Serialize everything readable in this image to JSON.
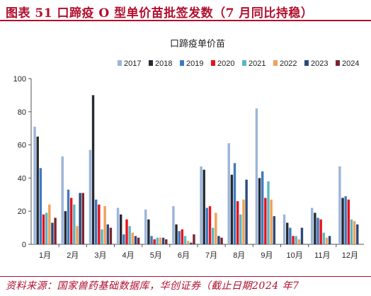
{
  "figure": {
    "header": "图表 51 口蹄疫 O 型单价苗批签发数（7 月同比持稳）",
    "source": "资料来源：国家兽药基础数据库，华创证券（截止日期2024 年7"
  },
  "colors": {
    "header_red": "#b10f2e",
    "series": [
      "#9bb5d9",
      "#262a33",
      "#3f7ac0",
      "#e8121b",
      "#5ab7c4",
      "#f0a05a",
      "#2b4a7a",
      "#7a2530"
    ]
  },
  "chart_data": {
    "type": "bar",
    "title": "口蹄疫单价苗",
    "categories": [
      "1月",
      "2月",
      "3月",
      "4月",
      "5月",
      "6月",
      "7月",
      "8月",
      "9月",
      "10月",
      "11月",
      "12月"
    ],
    "series": [
      {
        "name": "2017",
        "values": [
          71,
          53,
          57,
          22,
          21,
          23,
          47,
          61,
          82,
          18,
          22,
          47
        ]
      },
      {
        "name": "2018",
        "values": [
          65,
          20,
          90,
          18,
          15,
          12,
          45,
          42,
          40,
          13,
          19,
          28
        ]
      },
      {
        "name": "2019",
        "values": [
          46,
          33,
          27,
          6,
          5,
          8,
          22,
          49,
          44,
          10,
          16,
          29
        ]
      },
      {
        "name": "2020",
        "values": [
          18,
          28,
          24,
          15,
          3,
          9,
          23,
          26,
          28,
          5,
          15,
          27
        ]
      },
      {
        "name": "2021",
        "values": [
          19,
          24,
          9,
          11,
          4,
          5,
          10,
          18,
          38,
          5,
          7,
          15
        ]
      },
      {
        "name": "2022",
        "values": [
          24,
          11,
          23,
          7,
          4,
          2,
          19,
          27,
          27,
          3,
          4,
          14
        ]
      },
      {
        "name": "2023",
        "values": [
          13,
          31,
          12,
          5,
          4,
          1,
          5,
          39,
          17,
          10,
          5,
          12
        ]
      },
      {
        "name": "2024",
        "values": [
          16,
          31,
          10,
          4,
          3,
          6,
          4,
          null,
          null,
          null,
          null,
          null
        ]
      }
    ],
    "ylim": [
      0,
      100
    ],
    "yticks": [
      0,
      20,
      40,
      60,
      80,
      100
    ],
    "legend_position": "top",
    "grid": false
  }
}
